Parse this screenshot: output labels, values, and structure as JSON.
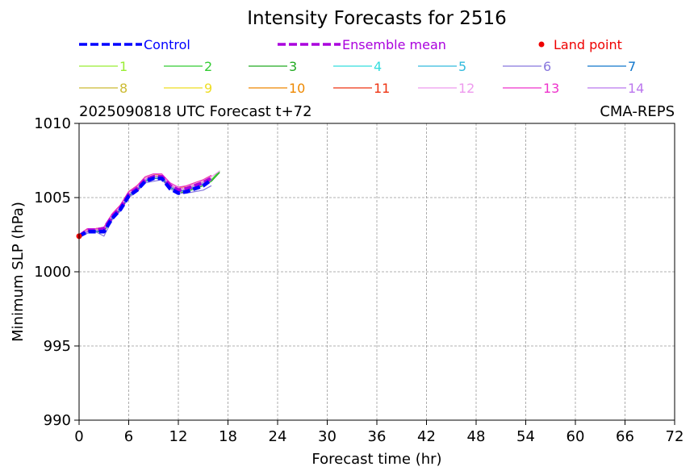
{
  "chart_data": {
    "type": "line",
    "title": "Intensity Forecasts for 2516",
    "subtitle_left": "2025090818 UTC Forecast t+72",
    "subtitle_right": "CMA-REPS",
    "xlabel": "Forecast time (hr)",
    "ylabel": "Minimum SLP (hPa)",
    "xlim": [
      0,
      72
    ],
    "ylim": [
      990,
      1010
    ],
    "xticks": [
      0,
      6,
      12,
      18,
      24,
      30,
      36,
      42,
      48,
      54,
      60,
      66,
      72
    ],
    "yticks": [
      990,
      995,
      1000,
      1005,
      1010
    ],
    "grid": true,
    "legend_placement": "top",
    "x": [
      0,
      1,
      2,
      3,
      4,
      5,
      6,
      7,
      8,
      9,
      10,
      11,
      12,
      13,
      14,
      15,
      16,
      17,
      18
    ],
    "series": [
      {
        "name": "Control",
        "color": "#0000ff",
        "style": "dashed-thick",
        "values": [
          1002.4,
          1002.7,
          1002.7,
          1002.7,
          1003.6,
          1004.2,
          1005.1,
          1005.5,
          1006.1,
          1006.3,
          1006.3,
          1005.6,
          1005.3,
          1005.4,
          1005.6,
          1005.8,
          1006.2,
          null,
          null
        ]
      },
      {
        "name": "Ensemble mean",
        "color": "#aa00dd",
        "style": "dashed-thick",
        "values": [
          1002.4,
          1002.8,
          1002.8,
          1002.9,
          1003.7,
          1004.3,
          1005.2,
          1005.6,
          1006.2,
          1006.4,
          1006.4,
          1005.8,
          1005.5,
          1005.6,
          1005.8,
          1006.0,
          1006.3,
          null,
          null
        ]
      },
      {
        "name": "1",
        "color": "#99ee33",
        "values": [
          1002.5,
          1002.8,
          1002.8,
          1002.9,
          1003.7,
          1004.3,
          1005.2,
          1005.6,
          1006.1,
          1006.3,
          1006.3,
          1005.7,
          1005.4,
          1005.5,
          1005.7,
          1005.9,
          1006.2,
          1006.8,
          null
        ]
      },
      {
        "name": "2",
        "color": "#33cc33",
        "values": [
          1002.4,
          1002.8,
          1002.8,
          1002.8,
          1003.7,
          1004.2,
          1005.1,
          1005.5,
          1006.1,
          1006.3,
          1006.3,
          1005.7,
          1005.4,
          1005.5,
          1005.7,
          1005.9,
          1006.2,
          1006.8,
          null
        ]
      },
      {
        "name": "3",
        "color": "#22aa22",
        "values": [
          1002.4,
          1002.7,
          1002.7,
          1002.7,
          1003.6,
          1004.2,
          1005.1,
          1005.5,
          1006.1,
          1006.3,
          1006.3,
          1005.6,
          1005.3,
          1005.4,
          1005.6,
          1005.8,
          1006.1,
          1006.7,
          null
        ]
      },
      {
        "name": "4",
        "color": "#33dddd",
        "values": [
          1002.5,
          1002.8,
          1002.8,
          1002.9,
          1003.8,
          1004.3,
          1005.2,
          1005.6,
          1006.2,
          1006.4,
          1006.4,
          1005.8,
          1005.5,
          1005.6,
          1005.8,
          1006.0,
          1006.3,
          null,
          null
        ]
      },
      {
        "name": "5",
        "color": "#33bbdd",
        "values": [
          1002.4,
          1002.8,
          1002.8,
          1002.8,
          1003.7,
          1004.3,
          1005.2,
          1005.6,
          1006.2,
          1006.4,
          1006.4,
          1005.7,
          1005.4,
          1005.5,
          1005.7,
          1005.9,
          1006.2,
          null,
          null
        ]
      },
      {
        "name": "6",
        "color": "#8877dd",
        "values": [
          1002.3,
          1002.6,
          1002.7,
          1002.4,
          1003.5,
          1004.1,
          1005.0,
          1005.4,
          1006.0,
          1006.1,
          1006.2,
          1005.6,
          1005.3,
          1005.3,
          1005.4,
          1005.5,
          1005.8,
          null,
          null
        ]
      },
      {
        "name": "7",
        "color": "#1177cc",
        "values": [
          1002.4,
          1002.7,
          1002.7,
          1002.8,
          1003.6,
          1004.2,
          1005.1,
          1005.5,
          1006.1,
          1006.3,
          1006.3,
          1005.7,
          1005.4,
          1005.5,
          1005.7,
          1005.9,
          1006.2,
          null,
          null
        ]
      },
      {
        "name": "8",
        "color": "#ccbb33",
        "values": [
          1002.5,
          1002.8,
          1002.9,
          1002.9,
          1003.8,
          1004.4,
          1005.3,
          1005.7,
          1006.3,
          1006.5,
          1006.5,
          1005.9,
          1005.6,
          1005.7,
          1005.9,
          1006.1,
          1006.4,
          null,
          null
        ]
      },
      {
        "name": "9",
        "color": "#eedd22",
        "values": [
          1002.5,
          1002.8,
          1002.8,
          1002.9,
          1003.8,
          1004.4,
          1005.3,
          1005.7,
          1006.3,
          1006.5,
          1006.4,
          1005.8,
          1005.5,
          1005.6,
          1005.8,
          1006.0,
          1006.3,
          null,
          null
        ]
      },
      {
        "name": "10",
        "color": "#ee8800",
        "values": [
          1002.5,
          1002.9,
          1002.9,
          1003.0,
          1003.9,
          1004.5,
          1005.4,
          1005.8,
          1006.4,
          1006.6,
          1006.5,
          1005.9,
          1005.6,
          1005.8,
          1006.0,
          1006.2,
          1006.5,
          null,
          null
        ]
      },
      {
        "name": "11",
        "color": "#ee3311",
        "values": [
          1002.5,
          1002.9,
          1002.9,
          1003.0,
          1003.9,
          1004.5,
          1005.4,
          1005.8,
          1006.3,
          1006.5,
          1006.5,
          1005.9,
          1005.6,
          1005.7,
          1005.9,
          1006.1,
          1006.4,
          null,
          null
        ]
      },
      {
        "name": "12",
        "color": "#ee99ee",
        "values": [
          1002.5,
          1002.8,
          1002.9,
          1002.9,
          1003.8,
          1004.4,
          1005.3,
          1005.7,
          1006.3,
          1006.5,
          1006.5,
          1005.9,
          1005.6,
          1005.7,
          1005.9,
          1006.1,
          1006.4,
          1006.8,
          null
        ]
      },
      {
        "name": "13",
        "color": "#ee33cc",
        "values": [
          1002.5,
          1002.9,
          1002.9,
          1003.0,
          1003.9,
          1004.5,
          1005.4,
          1005.8,
          1006.4,
          1006.6,
          1006.6,
          1006.0,
          1005.7,
          1005.8,
          1006.0,
          1006.2,
          1006.5,
          null,
          null
        ]
      },
      {
        "name": "14",
        "color": "#bb77ee",
        "values": [
          1002.4,
          1002.7,
          1002.8,
          1002.8,
          1003.7,
          1004.3,
          1005.2,
          1005.6,
          1006.2,
          1006.4,
          1006.4,
          1005.8,
          1005.5,
          1005.6,
          1005.8,
          1006.0,
          1006.3,
          null,
          null
        ]
      }
    ],
    "land_points": {
      "name": "Land point",
      "color": "#ee0000",
      "x": [
        0
      ],
      "y": [
        1002.4
      ]
    }
  }
}
